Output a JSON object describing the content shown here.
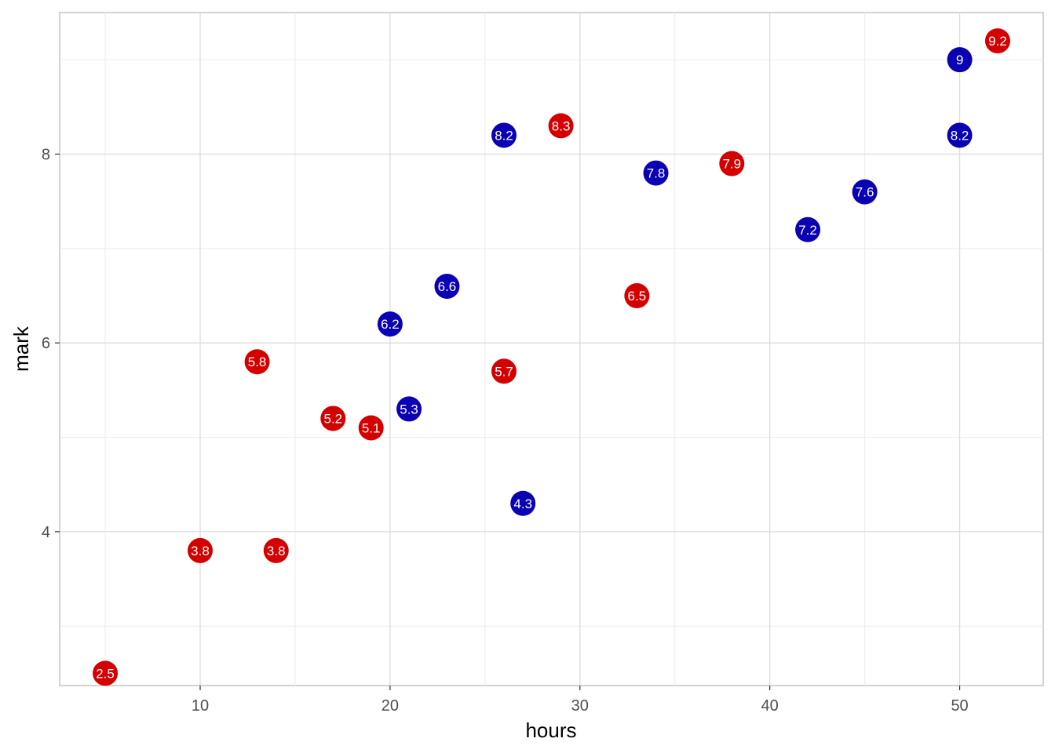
{
  "chart_data": {
    "type": "scatter",
    "xlabel": "hours",
    "ylabel": "mark",
    "xlim": [
      2.6,
      54.4
    ],
    "ylim": [
      2.37,
      9.5
    ],
    "x_ticks": [
      10,
      20,
      30,
      40,
      50
    ],
    "y_ticks": [
      4,
      6,
      8
    ],
    "grid": true,
    "colors": {
      "red": "#d40000",
      "blue": "#0a00b4"
    },
    "points": [
      {
        "x": 5,
        "y": 2.5,
        "label": "2.5",
        "color": "red"
      },
      {
        "x": 10,
        "y": 3.8,
        "label": "3.8",
        "color": "red"
      },
      {
        "x": 14,
        "y": 3.8,
        "label": "3.8",
        "color": "red"
      },
      {
        "x": 13,
        "y": 5.8,
        "label": "5.8",
        "color": "red"
      },
      {
        "x": 17,
        "y": 5.2,
        "label": "5.2",
        "color": "red"
      },
      {
        "x": 19,
        "y": 5.1,
        "label": "5.1",
        "color": "red"
      },
      {
        "x": 26,
        "y": 5.7,
        "label": "5.7",
        "color": "red"
      },
      {
        "x": 29,
        "y": 8.3,
        "label": "8.3",
        "color": "red"
      },
      {
        "x": 33,
        "y": 6.5,
        "label": "6.5",
        "color": "red"
      },
      {
        "x": 38,
        "y": 7.9,
        "label": "7.9",
        "color": "red"
      },
      {
        "x": 52,
        "y": 9.2,
        "label": "9.2",
        "color": "red"
      },
      {
        "x": 20,
        "y": 6.2,
        "label": "6.2",
        "color": "blue"
      },
      {
        "x": 21,
        "y": 5.3,
        "label": "5.3",
        "color": "blue"
      },
      {
        "x": 23,
        "y": 6.6,
        "label": "6.6",
        "color": "blue"
      },
      {
        "x": 26,
        "y": 8.2,
        "label": "8.2",
        "color": "blue"
      },
      {
        "x": 27,
        "y": 4.3,
        "label": "4.3",
        "color": "blue"
      },
      {
        "x": 34,
        "y": 7.8,
        "label": "7.8",
        "color": "blue"
      },
      {
        "x": 42,
        "y": 7.2,
        "label": "7.2",
        "color": "blue"
      },
      {
        "x": 45,
        "y": 7.6,
        "label": "7.6",
        "color": "blue"
      },
      {
        "x": 50,
        "y": 8.2,
        "label": "8.2",
        "color": "blue"
      },
      {
        "x": 50,
        "y": 9.0,
        "label": "9",
        "color": "blue"
      }
    ]
  }
}
